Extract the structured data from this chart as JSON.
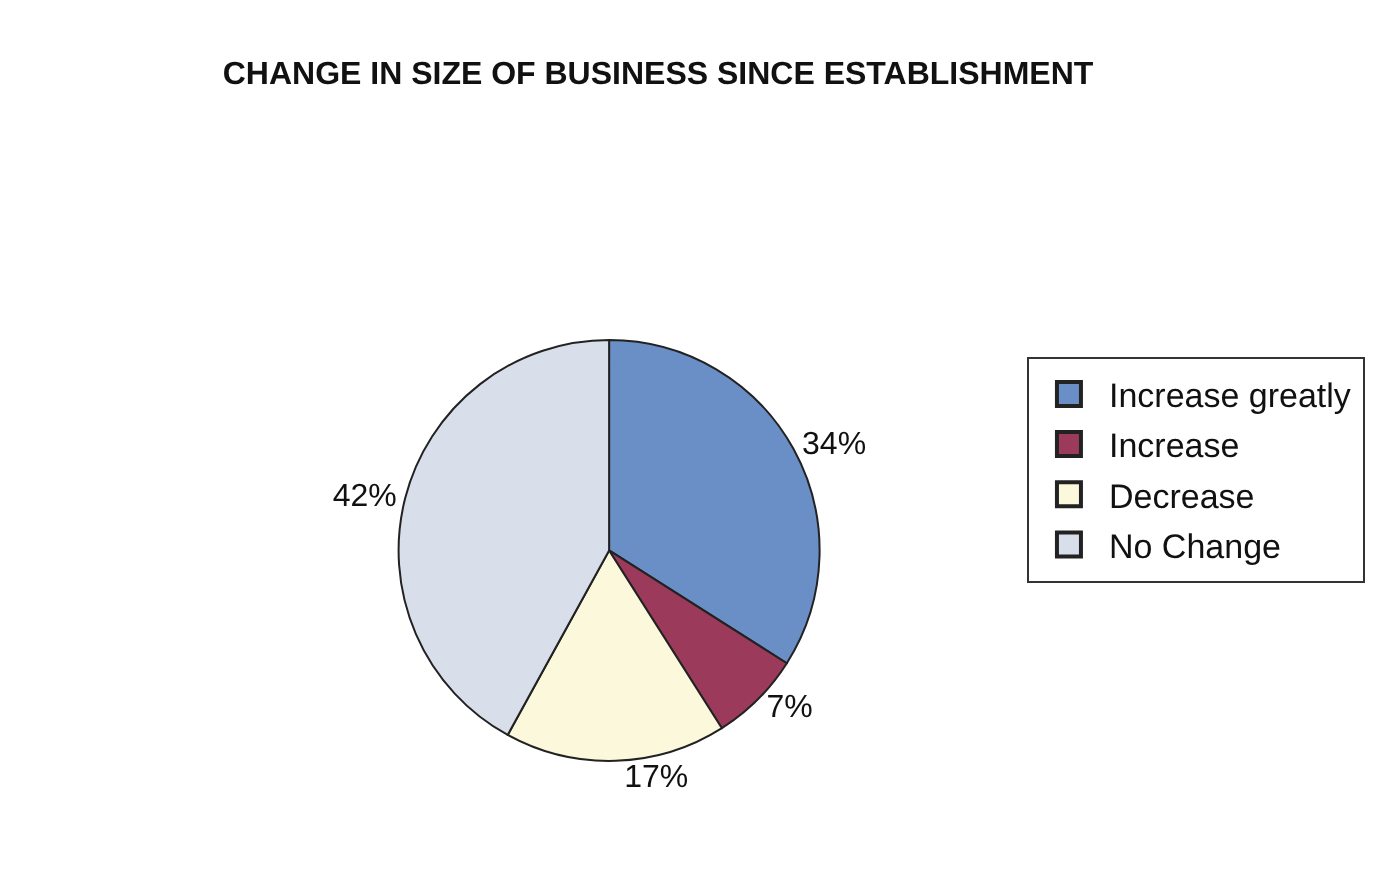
{
  "chart_data": {
    "type": "pie",
    "title": "CHANGE IN SIZE OF BUSINESS SINCE ESTABLISHMENT",
    "categories": [
      "Increase greatly",
      "Increase",
      "Decrease",
      "No Change"
    ],
    "values": [
      34,
      7,
      17,
      42
    ],
    "value_labels": [
      "34%",
      "7%",
      "17%",
      "42%"
    ],
    "colors": [
      "#6a8fc6",
      "#9c3a5b",
      "#fbf8dc",
      "#d9dfea"
    ],
    "legend": "right"
  }
}
